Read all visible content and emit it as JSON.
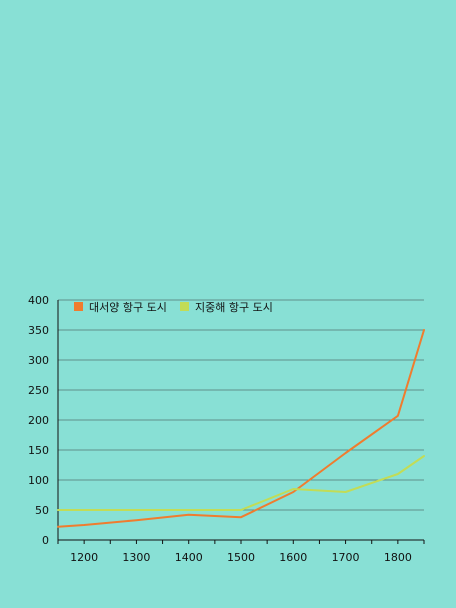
{
  "chart_data": {
    "type": "line",
    "title": "",
    "xlabel": "",
    "ylabel": "",
    "x": [
      1150,
      1200,
      1300,
      1400,
      1500,
      1600,
      1700,
      1800,
      1850
    ],
    "x_ticks": [
      "1200",
      "1300",
      "1400",
      "1500",
      "1600",
      "1700",
      "1800"
    ],
    "xlim": [
      1150,
      1850
    ],
    "ylim": [
      0,
      400
    ],
    "y_ticks": [
      "0",
      "50",
      "100",
      "150",
      "200",
      "250",
      "300",
      "350",
      "400"
    ],
    "grid": true,
    "legend_position": "top-left",
    "series": [
      {
        "name": "대서양 항구 도시",
        "color": "#f07c2e",
        "values": [
          22,
          25,
          33,
          42,
          38,
          80,
          145,
          207,
          350
        ]
      },
      {
        "name": "지중해 항구 도시",
        "color": "#c2dc56",
        "values": [
          50,
          50,
          50,
          50,
          50,
          85,
          80,
          110,
          140
        ]
      }
    ]
  }
}
